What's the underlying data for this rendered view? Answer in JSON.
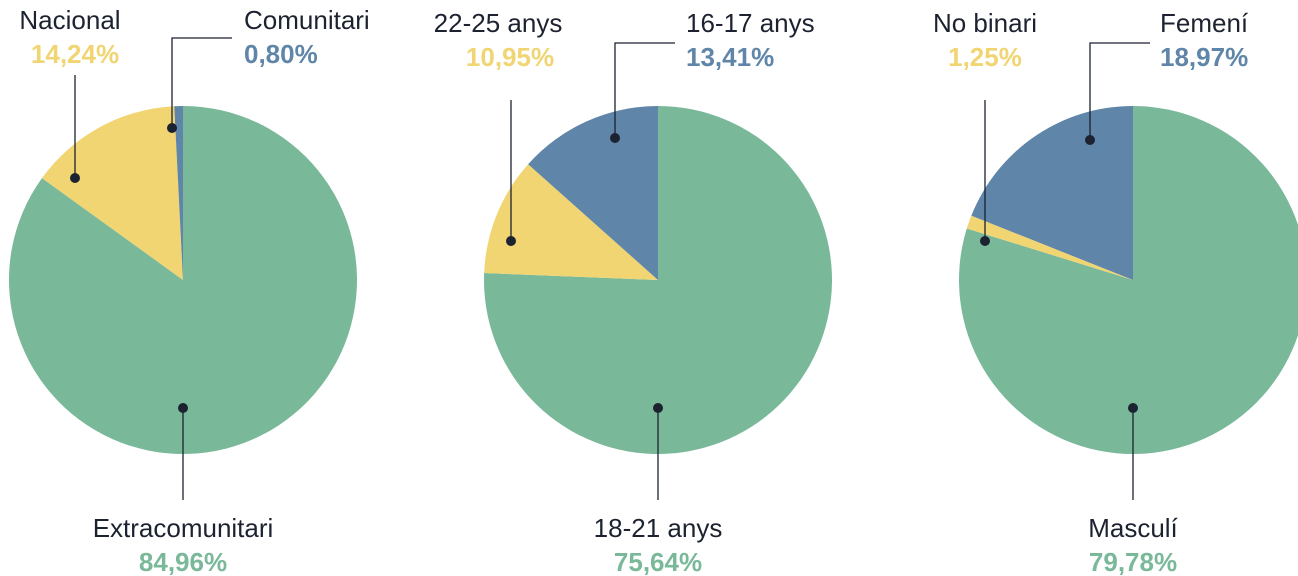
{
  "chart_data": [
    {
      "type": "pie",
      "categories": [
        "Extracomunitari",
        "Nacional",
        "Comunitari"
      ],
      "values": [
        84.96,
        14.24,
        0.8
      ],
      "value_labels": [
        "84,96%",
        "14,24%",
        "0,80%"
      ],
      "colors": [
        "#7ab89a",
        "#f0d572",
        "#5f85a8"
      ]
    },
    {
      "type": "pie",
      "categories": [
        "18-21 anys",
        "22-25 anys",
        "16-17 anys"
      ],
      "values": [
        75.64,
        10.95,
        13.41
      ],
      "value_labels": [
        "75,64%",
        "10,95%",
        "13,41%"
      ],
      "colors": [
        "#7ab89a",
        "#f0d572",
        "#5f85a8"
      ]
    },
    {
      "type": "pie",
      "categories": [
        "Masculí",
        "No binari",
        "Femení"
      ],
      "values": [
        79.78,
        1.25,
        18.97
      ],
      "value_labels": [
        "79,78%",
        "1,25%",
        "18,97%"
      ],
      "colors": [
        "#7ab89a",
        "#f0d572",
        "#5f85a8"
      ]
    }
  ]
}
